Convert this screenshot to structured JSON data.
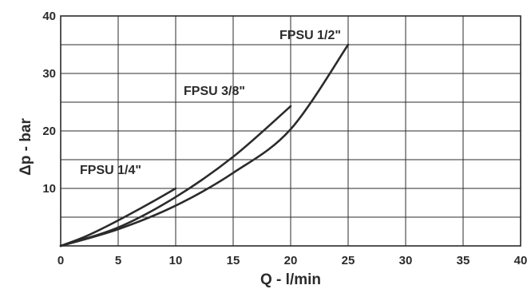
{
  "chart_data": {
    "type": "line",
    "title": "",
    "xlabel": "Q - l/min",
    "ylabel": "Δp - bar",
    "xlim": [
      0,
      40
    ],
    "ylim": [
      0,
      40
    ],
    "x_ticks": [
      0,
      5,
      10,
      15,
      20,
      25,
      30,
      35,
      40
    ],
    "y_ticks": [
      10,
      20,
      30,
      40
    ],
    "grid": true,
    "grid_minor_y_step": 5,
    "series": [
      {
        "name": "FPSU 1/4\"",
        "x": [
          0,
          2,
          4,
          6,
          8,
          10
        ],
        "y": [
          0,
          1.5,
          3.4,
          5.5,
          7.7,
          10
        ]
      },
      {
        "name": "FPSU 3/8\"",
        "x": [
          0,
          5,
          10,
          15,
          20
        ],
        "y": [
          0,
          3.2,
          8.5,
          15.5,
          24.3
        ]
      },
      {
        "name": "FPSU 1/2\"",
        "x": [
          0,
          5,
          10,
          15,
          20,
          25
        ],
        "y": [
          0,
          2.9,
          7.0,
          12.7,
          20.3,
          35
        ]
      }
    ],
    "line_color": "#2b2b2b"
  }
}
